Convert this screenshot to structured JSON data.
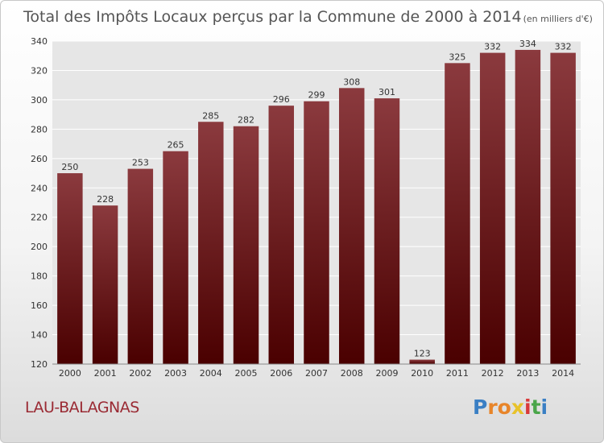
{
  "chart_data": {
    "type": "bar",
    "title": "Total des Impôts Locaux perçus par la Commune de 2000 à 2014",
    "title_unit": "(en milliers d'€)",
    "categories": [
      "2000",
      "2001",
      "2002",
      "2003",
      "2004",
      "2005",
      "2006",
      "2007",
      "2008",
      "2009",
      "2010",
      "2011",
      "2012",
      "2013",
      "2014"
    ],
    "values": [
      250,
      228,
      253,
      265,
      285,
      282,
      296,
      299,
      308,
      301,
      123,
      325,
      332,
      334,
      332
    ],
    "ylim": [
      120,
      340
    ],
    "yticks": [
      120,
      140,
      160,
      180,
      200,
      220,
      240,
      260,
      280,
      300,
      320,
      340
    ],
    "xlabel": "",
    "ylabel": "",
    "grid": true,
    "colors": {
      "bar_top": "#8b3a3e",
      "bar_bottom": "#4a0000",
      "plot_bg": "#e6e6e6"
    }
  },
  "commune_name": "LAU-BALAGNAS",
  "logo": {
    "letters": [
      "P",
      "r",
      "o",
      "x",
      "i",
      "t",
      "i"
    ],
    "colors": [
      "#3a7fc4",
      "#e8852a",
      "#e8852a",
      "#e8c22a",
      "#d93a3a",
      "#4aa64a",
      "#3a7fc4"
    ]
  }
}
